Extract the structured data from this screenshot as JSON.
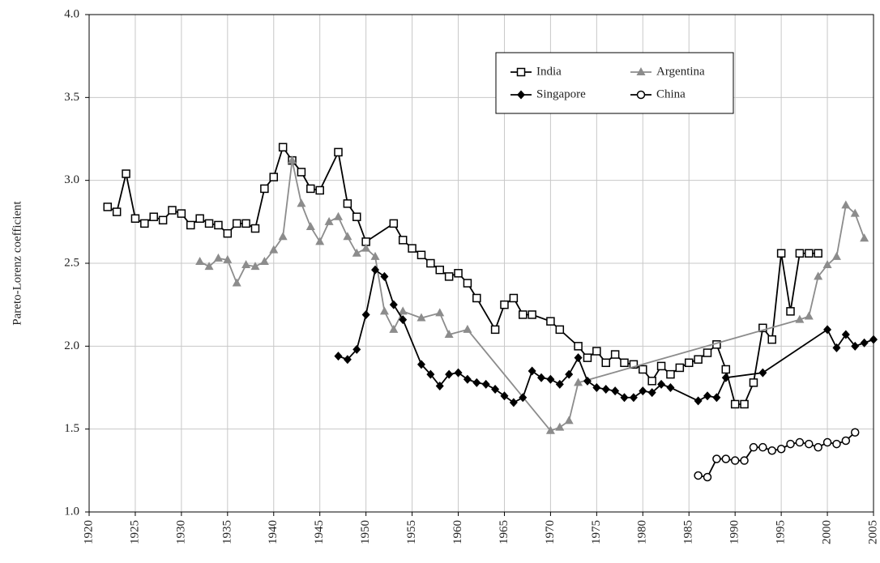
{
  "chart_data": {
    "type": "line",
    "y_label": "Pareto-Lorenz coefficient",
    "xlim": [
      1920,
      2005
    ],
    "xticks": [
      1920,
      1925,
      1930,
      1935,
      1940,
      1945,
      1950,
      1955,
      1960,
      1965,
      1970,
      1975,
      1980,
      1985,
      1990,
      1995,
      2000,
      2005
    ],
    "ylim": [
      1,
      4
    ],
    "yticks": [
      {
        "value": 1,
        "label": "1.0"
      },
      {
        "value": 1.5,
        "label": "1.5"
      },
      {
        "value": 2,
        "label": "2.0"
      },
      {
        "value": 2.5,
        "label": "2.5"
      },
      {
        "value": 3,
        "label": "3.0"
      },
      {
        "value": 3.5,
        "label": "3.5"
      },
      {
        "value": 4,
        "label": "4.0"
      }
    ],
    "grid": true,
    "legend": "upper right",
    "series": [
      {
        "name": "India",
        "color": "#000000",
        "marker": "square",
        "x": [
          1922,
          1923,
          1924,
          1925,
          1926,
          1927,
          1928,
          1929,
          1930,
          1931,
          1932,
          1933,
          1934,
          1935,
          1936,
          1937,
          1938,
          1939,
          1940,
          1941,
          1942,
          1943,
          1944,
          1945,
          1947,
          1948,
          1949,
          1950,
          1953,
          1954,
          1955,
          1956,
          1957,
          1958,
          1959,
          1960,
          1961,
          1962,
          1964,
          1965,
          1966,
          1967,
          1968,
          1970,
          1971,
          1973,
          1974,
          1975,
          1976,
          1977,
          1978,
          1979,
          1980,
          1981,
          1982,
          1983,
          1984,
          1985,
          1986,
          1987,
          1988,
          1989,
          1990,
          1991,
          1992,
          1993,
          1994,
          1995,
          1996,
          1997,
          1998,
          1999
        ],
        "values": [
          2.84,
          2.81,
          3.04,
          2.77,
          2.74,
          2.78,
          2.76,
          2.82,
          2.8,
          2.73,
          2.77,
          2.74,
          2.73,
          2.68,
          2.74,
          2.74,
          2.71,
          2.95,
          3.02,
          3.2,
          3.12,
          3.05,
          2.95,
          2.94,
          3.17,
          2.86,
          2.78,
          2.63,
          2.74,
          2.64,
          2.59,
          2.55,
          2.5,
          2.46,
          2.42,
          2.44,
          2.38,
          2.29,
          2.1,
          2.25,
          2.29,
          2.19,
          2.19,
          2.15,
          2.1,
          2.0,
          1.93,
          1.97,
          1.9,
          1.95,
          1.9,
          1.89,
          1.86,
          1.79,
          1.88,
          1.83,
          1.87,
          1.9,
          1.92,
          1.96,
          2.01,
          1.86,
          1.65,
          1.65,
          1.78,
          2.11,
          2.04,
          2.56,
          2.21,
          2.56,
          2.56,
          2.56
        ]
      },
      {
        "name": "Argentina",
        "color": "#8c8c8c",
        "marker": "triangle",
        "x": [
          1932,
          1933,
          1934,
          1935,
          1936,
          1937,
          1938,
          1939,
          1940,
          1941,
          1942,
          1943,
          1944,
          1945,
          1946,
          1947,
          1948,
          1949,
          1950,
          1951,
          1952,
          1953,
          1954,
          1956,
          1958,
          1959,
          1961,
          1970,
          1971,
          1972,
          1973,
          1997,
          1998,
          1999,
          2000,
          2001,
          2002,
          2003,
          2004
        ],
        "values": [
          2.51,
          2.48,
          2.53,
          2.52,
          2.38,
          2.49,
          2.48,
          2.51,
          2.58,
          2.66,
          3.12,
          2.86,
          2.72,
          2.63,
          2.75,
          2.78,
          2.66,
          2.56,
          2.59,
          2.54,
          2.21,
          2.1,
          2.21,
          2.17,
          2.2,
          2.07,
          2.1,
          1.49,
          1.51,
          1.55,
          1.78,
          2.16,
          2.18,
          2.42,
          2.49,
          2.54,
          2.85,
          2.8,
          2.65
        ]
      },
      {
        "name": "Singapore",
        "color": "#000000",
        "marker": "diamond",
        "x": [
          1947,
          1948,
          1949,
          1950,
          1951,
          1952,
          1953,
          1954,
          1956,
          1957,
          1958,
          1959,
          1960,
          1961,
          1962,
          1963,
          1964,
          1965,
          1966,
          1967,
          1968,
          1969,
          1970,
          1971,
          1972,
          1973,
          1974,
          1975,
          1976,
          1977,
          1978,
          1979,
          1980,
          1981,
          1982,
          1983,
          1986,
          1987,
          1988,
          1989,
          1993,
          2000,
          2001,
          2002,
          2003,
          2004,
          2005
        ],
        "values": [
          1.94,
          1.92,
          1.98,
          2.19,
          2.46,
          2.42,
          2.25,
          2.16,
          1.89,
          1.83,
          1.76,
          1.83,
          1.84,
          1.8,
          1.78,
          1.77,
          1.74,
          1.7,
          1.66,
          1.69,
          1.85,
          1.81,
          1.8,
          1.77,
          1.83,
          1.93,
          1.79,
          1.75,
          1.74,
          1.73,
          1.69,
          1.69,
          1.73,
          1.72,
          1.77,
          1.75,
          1.67,
          1.7,
          1.69,
          1.81,
          1.84,
          2.1,
          1.99,
          2.07,
          2.0,
          2.02,
          2.04
        ]
      },
      {
        "name": "China",
        "color": "#000000",
        "marker": "circle",
        "x": [
          1986,
          1987,
          1988,
          1989,
          1990,
          1991,
          1992,
          1993,
          1994,
          1995,
          1996,
          1997,
          1998,
          1999,
          2000,
          2001,
          2002,
          2003
        ],
        "values": [
          1.22,
          1.21,
          1.32,
          1.32,
          1.31,
          1.31,
          1.39,
          1.39,
          1.37,
          1.38,
          1.41,
          1.42,
          1.41,
          1.39,
          1.42,
          1.41,
          1.43,
          1.48
        ]
      }
    ]
  }
}
